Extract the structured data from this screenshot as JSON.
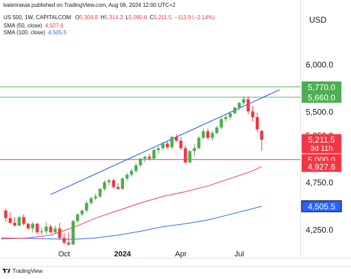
{
  "header": {
    "publisher": "katerinavia published on TradingView.com, Aug 06, 2024 12:00 UTC+2",
    "symbol": "US 500, 1W, CAPITALCOM",
    "ohlc": [
      {
        "label": "O",
        "value": "5,304.8"
      },
      {
        "label": "H",
        "value": "5,314.3"
      },
      {
        "label": "L",
        "value": "5,090.6"
      },
      {
        "label": "C",
        "value": "5,211.5"
      },
      {
        "label": "",
        "value": "−113.9 (−2.14%)"
      }
    ],
    "indicators": [
      {
        "label": "SMA (50, close)",
        "value": "4,927.6",
        "color": "#f23645"
      },
      {
        "label": "SMA (100, close)",
        "value": "4,505.5",
        "color": "#2962ff"
      }
    ]
  },
  "currency": "USD",
  "footer": {
    "brand": "TradingView"
  },
  "chart_data": {
    "type": "candlestick",
    "symbol": "US 500",
    "interval": "1W",
    "ylim": [
      3960,
      6400
    ],
    "y_ticks": [
      4250,
      4750,
      5250,
      5500,
      6000
    ],
    "y_tick_labels": [
      "4,250.0",
      "4,750.0",
      "5,250.0",
      "5,500.0",
      "6,000.0"
    ],
    "x_labels": [
      {
        "label": "Oct",
        "index": 13,
        "bold": false
      },
      {
        "label": "2024",
        "index": 26,
        "bold": true
      },
      {
        "label": "Apr",
        "index": 39,
        "bold": false
      },
      {
        "label": "Jul",
        "index": 52,
        "bold": false
      }
    ],
    "candles": [
      {
        "o": 4460,
        "h": 4480,
        "l": 4340,
        "c": 4380
      },
      {
        "o": 4380,
        "h": 4440,
        "l": 4320,
        "c": 4330
      },
      {
        "o": 4330,
        "h": 4390,
        "l": 4290,
        "c": 4300
      },
      {
        "o": 4300,
        "h": 4400,
        "l": 4295,
        "c": 4390
      },
      {
        "o": 4390,
        "h": 4420,
        "l": 4300,
        "c": 4320
      },
      {
        "o": 4320,
        "h": 4330,
        "l": 4260,
        "c": 4270
      },
      {
        "o": 4270,
        "h": 4340,
        "l": 4230,
        "c": 4320
      },
      {
        "o": 4320,
        "h": 4330,
        "l": 4210,
        "c": 4230
      },
      {
        "o": 4230,
        "h": 4280,
        "l": 4200,
        "c": 4240
      },
      {
        "o": 4240,
        "h": 4340,
        "l": 4210,
        "c": 4290
      },
      {
        "o": 4290,
        "h": 4310,
        "l": 4220,
        "c": 4230
      },
      {
        "o": 4230,
        "h": 4300,
        "l": 4210,
        "c": 4270
      },
      {
        "o": 4270,
        "h": 4330,
        "l": 4150,
        "c": 4170
      },
      {
        "o": 4170,
        "h": 4220,
        "l": 4100,
        "c": 4120
      },
      {
        "o": 4120,
        "h": 4230,
        "l": 4090,
        "c": 4100
      },
      {
        "o": 4100,
        "h": 4360,
        "l": 4100,
        "c": 4350
      },
      {
        "o": 4350,
        "h": 4430,
        "l": 4330,
        "c": 4420
      },
      {
        "o": 4420,
        "h": 4470,
        "l": 4400,
        "c": 4460
      },
      {
        "o": 4460,
        "h": 4560,
        "l": 4440,
        "c": 4540
      },
      {
        "o": 4540,
        "h": 4610,
        "l": 4520,
        "c": 4590
      },
      {
        "o": 4590,
        "h": 4640,
        "l": 4570,
        "c": 4610
      },
      {
        "o": 4610,
        "h": 4700,
        "l": 4590,
        "c": 4690
      },
      {
        "o": 4690,
        "h": 4780,
        "l": 4670,
        "c": 4760
      },
      {
        "o": 4760,
        "h": 4800,
        "l": 4730,
        "c": 4780
      },
      {
        "o": 4780,
        "h": 4800,
        "l": 4690,
        "c": 4710
      },
      {
        "o": 4710,
        "h": 4750,
        "l": 4680,
        "c": 4690
      },
      {
        "o": 4690,
        "h": 4810,
        "l": 4680,
        "c": 4800
      },
      {
        "o": 4800,
        "h": 4860,
        "l": 4770,
        "c": 4840
      },
      {
        "o": 4840,
        "h": 4900,
        "l": 4820,
        "c": 4880
      },
      {
        "o": 4880,
        "h": 4960,
        "l": 4860,
        "c": 4940
      },
      {
        "o": 4940,
        "h": 5020,
        "l": 4920,
        "c": 5010
      },
      {
        "o": 5010,
        "h": 5040,
        "l": 4970,
        "c": 5030
      },
      {
        "o": 5030,
        "h": 5060,
        "l": 4990,
        "c": 5010
      },
      {
        "o": 5010,
        "h": 5120,
        "l": 5000,
        "c": 5100
      },
      {
        "o": 5100,
        "h": 5140,
        "l": 5060,
        "c": 5120
      },
      {
        "o": 5120,
        "h": 5190,
        "l": 5100,
        "c": 5170
      },
      {
        "o": 5170,
        "h": 5200,
        "l": 5110,
        "c": 5130
      },
      {
        "o": 5130,
        "h": 5250,
        "l": 5110,
        "c": 5240
      },
      {
        "o": 5240,
        "h": 5270,
        "l": 5190,
        "c": 5200
      },
      {
        "o": 5200,
        "h": 5240,
        "l": 5100,
        "c": 5120
      },
      {
        "o": 5120,
        "h": 5150,
        "l": 4960,
        "c": 4970
      },
      {
        "o": 4970,
        "h": 5100,
        "l": 4960,
        "c": 5090
      },
      {
        "o": 5090,
        "h": 5160,
        "l": 5040,
        "c": 5120
      },
      {
        "o": 5120,
        "h": 5250,
        "l": 5110,
        "c": 5230
      },
      {
        "o": 5230,
        "h": 5330,
        "l": 5220,
        "c": 5300
      },
      {
        "o": 5300,
        "h": 5330,
        "l": 5210,
        "c": 5230
      },
      {
        "o": 5230,
        "h": 5310,
        "l": 5200,
        "c": 5280
      },
      {
        "o": 5280,
        "h": 5360,
        "l": 5270,
        "c": 5340
      },
      {
        "o": 5340,
        "h": 5460,
        "l": 5320,
        "c": 5430
      },
      {
        "o": 5430,
        "h": 5470,
        "l": 5400,
        "c": 5450
      },
      {
        "o": 5450,
        "h": 5510,
        "l": 5420,
        "c": 5490
      },
      {
        "o": 5490,
        "h": 5560,
        "l": 5480,
        "c": 5550
      },
      {
        "o": 5550,
        "h": 5610,
        "l": 5520,
        "c": 5600
      },
      {
        "o": 5600,
        "h": 5670,
        "l": 5580,
        "c": 5640
      },
      {
        "o": 5640,
        "h": 5670,
        "l": 5480,
        "c": 5510
      },
      {
        "o": 5510,
        "h": 5570,
        "l": 5400,
        "c": 5450
      },
      {
        "o": 5450,
        "h": 5500,
        "l": 5290,
        "c": 5320
      },
      {
        "o": 5304.8,
        "h": 5314.3,
        "l": 5090.6,
        "c": 5211.5
      }
    ],
    "sma50": [
      [
        -1,
        4160
      ],
      [
        5,
        4170
      ],
      [
        10,
        4200
      ],
      [
        15,
        4280
      ],
      [
        20,
        4380
      ],
      [
        25,
        4460
      ],
      [
        30,
        4540
      ],
      [
        35,
        4610
      ],
      [
        40,
        4660
      ],
      [
        45,
        4720
      ],
      [
        50,
        4800
      ],
      [
        55,
        4880
      ],
      [
        57,
        4927.6
      ]
    ],
    "sma100": [
      [
        -1,
        4170
      ],
      [
        5,
        4165
      ],
      [
        10,
        4160
      ],
      [
        15,
        4155
      ],
      [
        20,
        4170
      ],
      [
        25,
        4200
      ],
      [
        30,
        4240
      ],
      [
        35,
        4290
      ],
      [
        40,
        4320
      ],
      [
        45,
        4360
      ],
      [
        50,
        4420
      ],
      [
        55,
        4480
      ],
      [
        57,
        4505.5
      ]
    ],
    "trendline": {
      "from": [
        10,
        4630
      ],
      "to": [
        61,
        5740
      ],
      "color": "#2962ff"
    },
    "horizontal_lines": [
      {
        "value": 5770.0,
        "label": "5,770.0",
        "color": "#4caf50"
      },
      {
        "value": 5660.0,
        "label": "5,660.0",
        "color": "#4caf50"
      },
      {
        "value": 5000.0,
        "label": "5,000.0",
        "color": "#f23645"
      }
    ],
    "price_tags": [
      {
        "value": 5211.5,
        "label": "5,211.5",
        "sublabel": "3d 11h",
        "color": "#f23645"
      },
      {
        "value": 4927.6,
        "label": "4,927.6",
        "color": "#f23645"
      },
      {
        "value": 4505.5,
        "label": "4,505.5",
        "color": "#2962ff",
        "boxed": true
      }
    ],
    "colors": {
      "up": "#4caf50",
      "down": "#f23645"
    }
  }
}
